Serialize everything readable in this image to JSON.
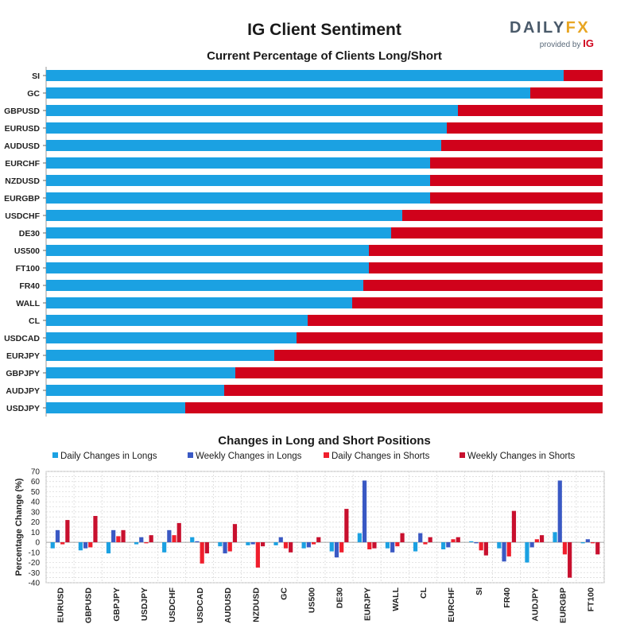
{
  "header": {
    "title": "IG Client Sentiment",
    "brand_daily": "DAILY",
    "brand_fx": "FX",
    "brand_provided": "provided by",
    "brand_ig": "IG"
  },
  "colors": {
    "long": "#1ba1e2",
    "short": "#d0021b",
    "daily_longs": "#1ba1e2",
    "weekly_longs": "#3a59c4",
    "daily_shorts": "#f01e2c",
    "weekly_shorts": "#c8102e"
  },
  "chart_data": [
    {
      "type": "bar",
      "orientation": "horizontal",
      "stacked": true,
      "title": "Current Percentage of Clients Long/Short",
      "categories": [
        "SI",
        "GC",
        "GBPUSD",
        "EURUSD",
        "AUDUSD",
        "EURCHF",
        "NZDUSD",
        "EURGBP",
        "USDCHF",
        "DE30",
        "US500",
        "FT100",
        "FR40",
        "WALL",
        "CL",
        "USDCAD",
        "EURJPY",
        "GBPJPY",
        "AUDJPY",
        "USDJPY"
      ],
      "series": [
        {
          "values": [
            93,
            87,
            74,
            72,
            71,
            69,
            69,
            69,
            64,
            62,
            58,
            58,
            57,
            55,
            47,
            45,
            41,
            34,
            32,
            25
          ]
        },
        {
          "values": [
            7,
            13,
            26,
            28,
            29,
            31,
            31,
            31,
            36,
            38,
            42,
            42,
            43,
            45,
            53,
            55,
            59,
            66,
            68,
            75
          ]
        }
      ],
      "xlim": [
        0,
        100
      ],
      "grid": false
    },
    {
      "type": "bar",
      "title": "Changes in Long and Short Positions",
      "ylabel": "Percentage Change (%)",
      "ylim": [
        -40,
        70
      ],
      "yticks": [
        70,
        60,
        50,
        40,
        30,
        20,
        10,
        0,
        -10,
        -20,
        -30,
        -40
      ],
      "grid": true,
      "legend_position": "top",
      "categories": [
        "EURUSD",
        "GBPUSD",
        "GBPJPY",
        "USDJPY",
        "USDCHF",
        "USDCAD",
        "AUDUSD",
        "NZDUSD",
        "GC",
        "US500",
        "DE30",
        "EURJPY",
        "WALL",
        "CL",
        "EURCHF",
        "SI",
        "FR40",
        "AUDJPY",
        "EURGBP",
        "FT100"
      ],
      "series": [
        {
          "name": "Daily Changes in Longs",
          "values": [
            -6,
            -8,
            -11,
            -2,
            -10,
            5,
            -4,
            -3,
            -3,
            -6,
            -9,
            9,
            -6,
            -9,
            -7,
            1,
            -6,
            -20,
            10,
            -1
          ]
        },
        {
          "name": "Weekly Changes in Longs",
          "values": [
            12,
            -6,
            12,
            5,
            12,
            1,
            -11,
            -2,
            5,
            -5,
            -15,
            61,
            -10,
            9,
            -5,
            -1,
            -19,
            -5,
            61,
            3
          ]
        },
        {
          "name": "Daily Changes in Shorts",
          "values": [
            -2,
            -5,
            6,
            -1,
            7,
            -21,
            -9,
            -25,
            -6,
            -2,
            -10,
            -7,
            -4,
            -2,
            3,
            -8,
            -14,
            3,
            -12,
            -1
          ]
        },
        {
          "name": "Weekly Changes in Shorts",
          "values": [
            22,
            26,
            12,
            7,
            19,
            -11,
            18,
            -4,
            -10,
            5,
            33,
            -6,
            9,
            5,
            5,
            -13,
            31,
            7,
            -35,
            -12
          ]
        }
      ]
    }
  ]
}
